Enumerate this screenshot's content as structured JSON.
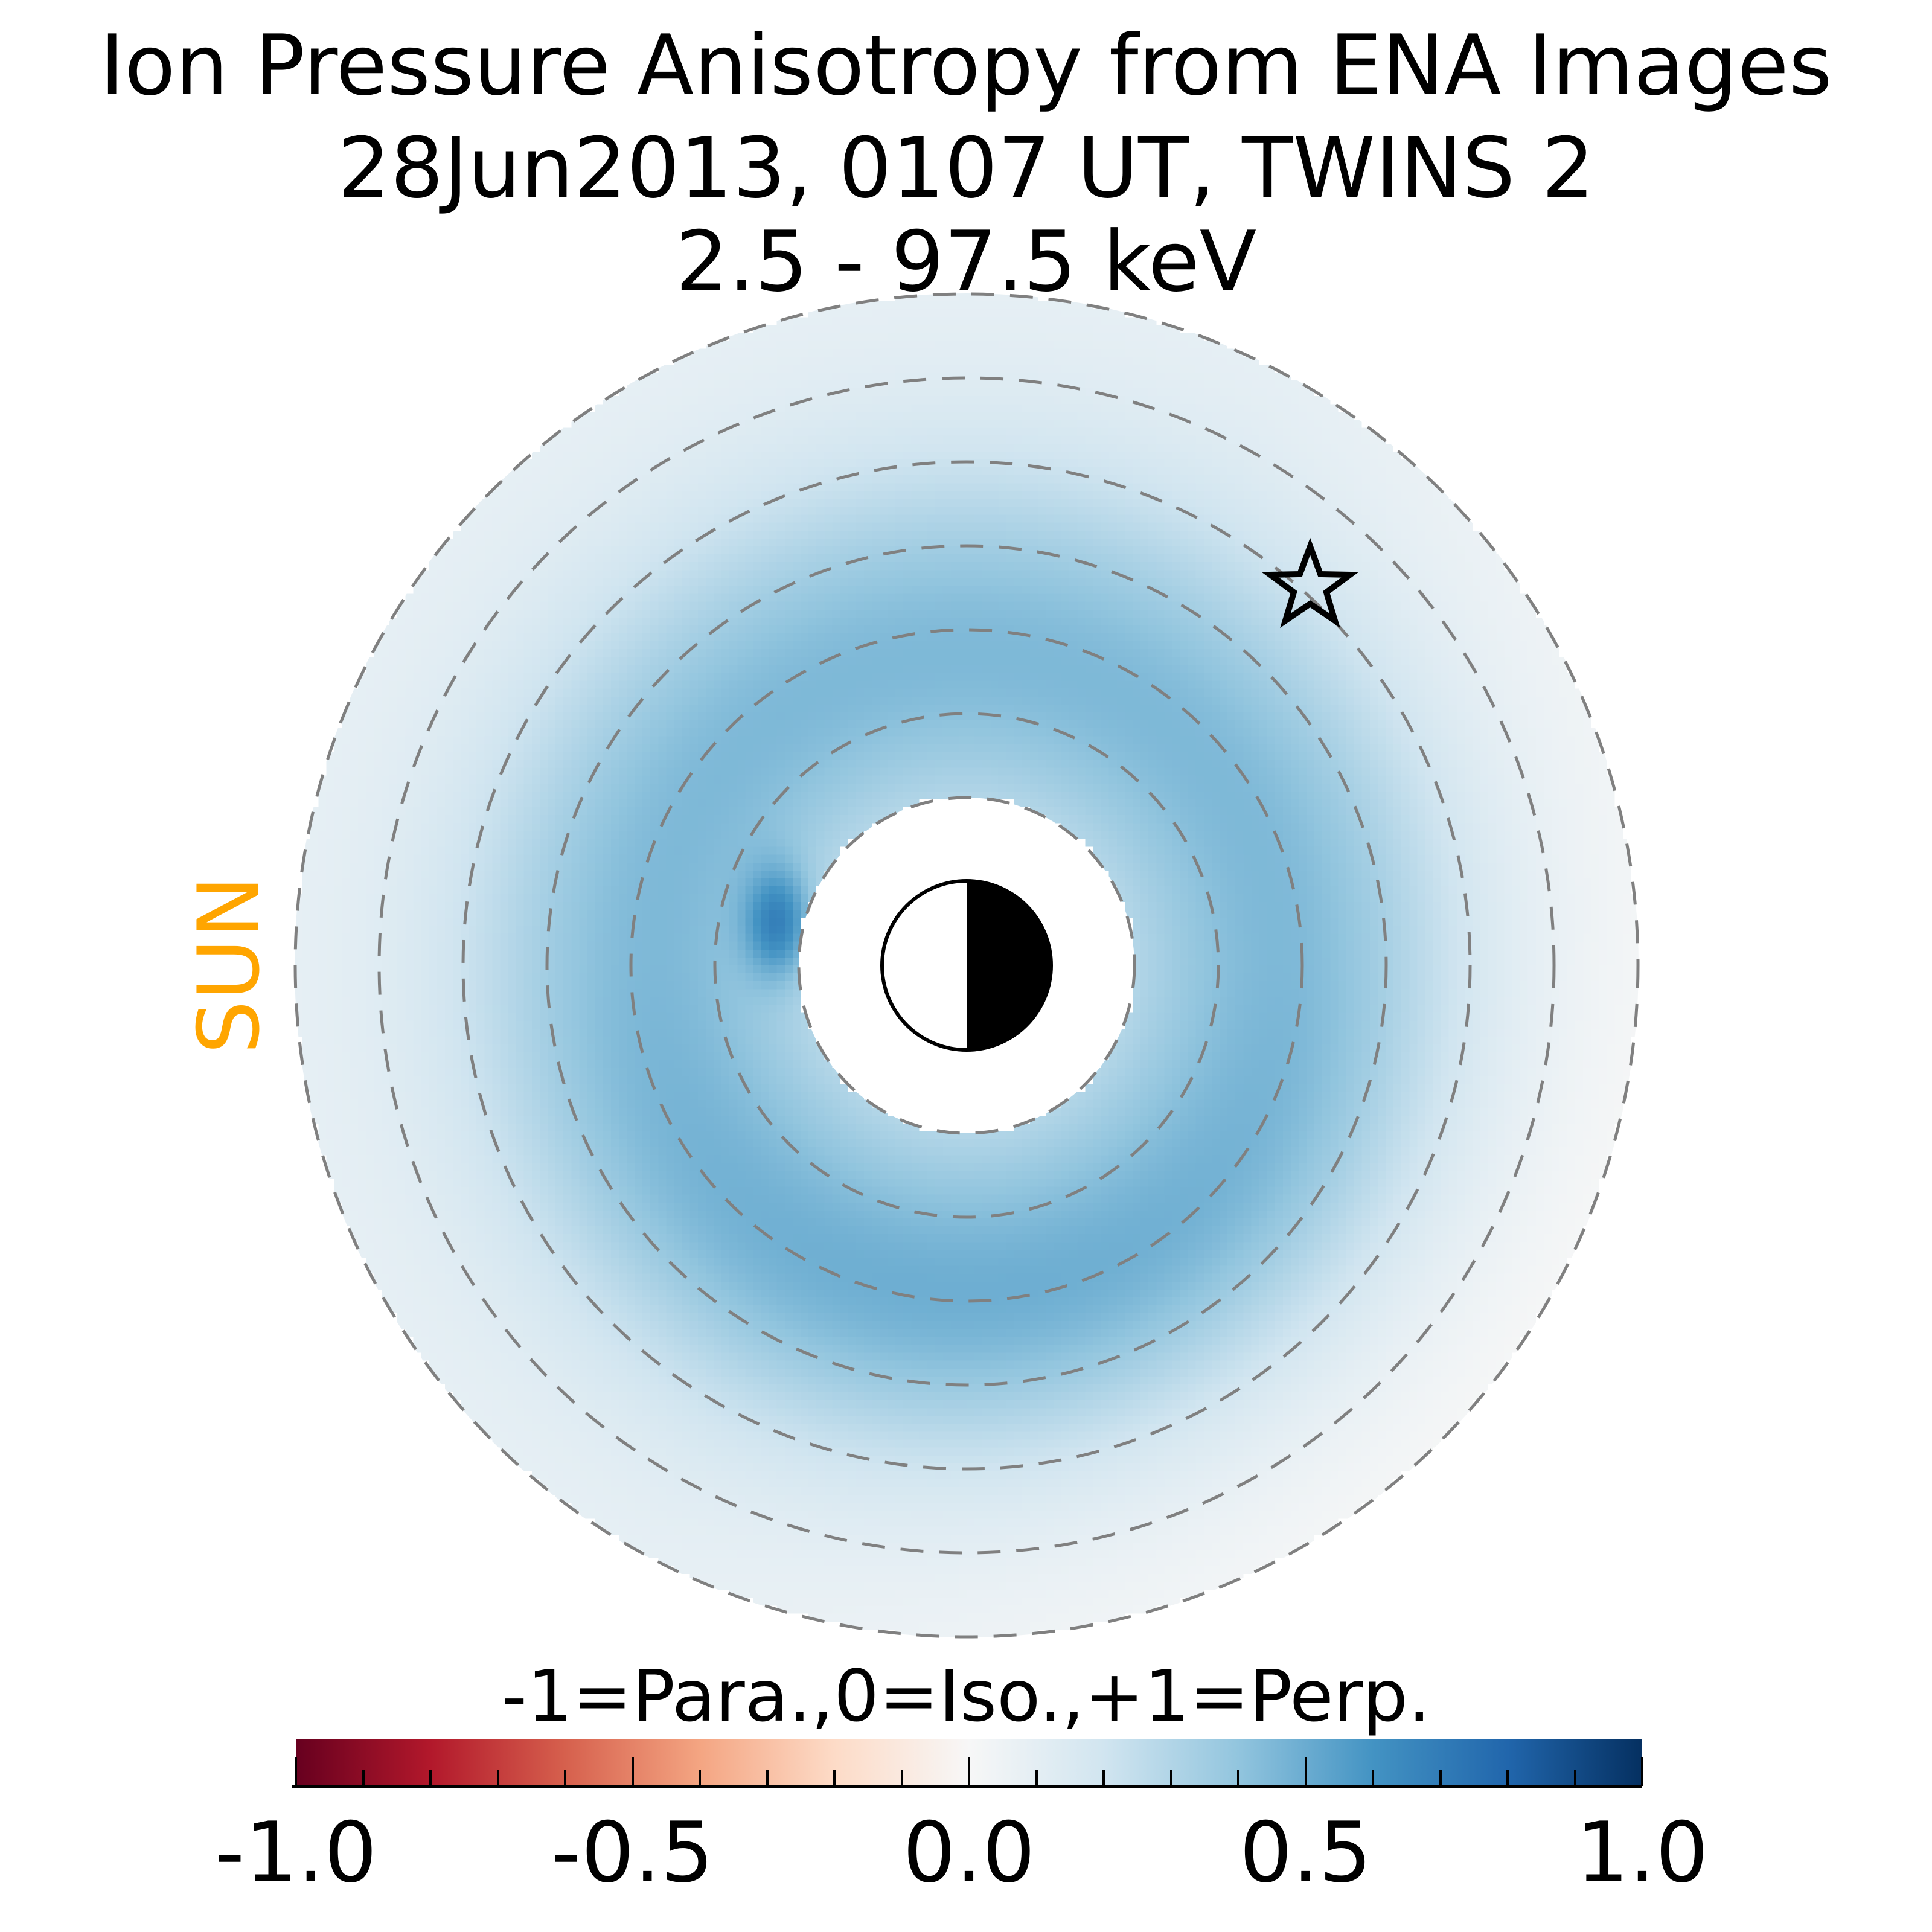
{
  "title": {
    "line1": "Ion Pressure Anisotropy from  ENA Images",
    "line2": "28Jun2013, 0107 UT,  TWINS 2",
    "line3": "2.5 - 97.5 keV"
  },
  "sun_label": "SUN",
  "colorbar": {
    "label": "-1=Para.,0=Iso.,+1=Perp.",
    "ticks": [
      "-1.0",
      "-0.5",
      "0.0",
      "0.5",
      "1.0"
    ],
    "range": [
      -1,
      1
    ],
    "colormap": "RdBu"
  },
  "chart_data": {
    "type": "heatmap",
    "title": "Ion Pressure Anisotropy from  ENA Images",
    "subtitle": "28Jun2013, 0107 UT,  TWINS 2 / 2.5 - 97.5 keV",
    "projection": "polar equatorial plane, Sun to the left",
    "radial_range_RE": [
      2,
      8
    ],
    "dashed_circles_RE": [
      2,
      3,
      4,
      5,
      6,
      7,
      8
    ],
    "value_range": [
      -1,
      1
    ],
    "description_of_values": {
      "peak_ring_RE": 3.7,
      "peak_value": 0.45,
      "outer_edge_value": 0.1,
      "local_max_near": {
        "r_RE": 2.3,
        "direction": "pre-noon upper-left",
        "value": 0.75
      }
    },
    "legend": "-1=Para.,0=Iso.,+1=Perp.",
    "markers": [
      {
        "type": "star",
        "meaning": "spacecraft position"
      }
    ],
    "colors": {
      "sun": "#FFA500",
      "grid": "#808080"
    }
  }
}
